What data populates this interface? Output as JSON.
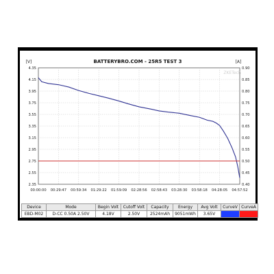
{
  "chart_data": {
    "type": "line",
    "title": "BATTERYBRO.COM - 25R5 TEST 3",
    "watermark": "ZKETech",
    "left_unit": "[V]",
    "right_unit": "[A]",
    "xlabel": "",
    "ylabel": "",
    "y_left_lim": [
      2.35,
      4.35
    ],
    "y_left_ticks": [
      "4.35",
      "4.15",
      "3.95",
      "3.75",
      "3.55",
      "3.35",
      "3.15",
      "2.95",
      "2.75",
      "2.55",
      "2.35"
    ],
    "y_right_lim": [
      0.4,
      0.9
    ],
    "y_right_ticks": [
      "0.90",
      "0.85",
      "0.80",
      "0.75",
      "0.70",
      "0.65",
      "0.60",
      "0.55",
      "0.50",
      "0.45",
      "0.40"
    ],
    "x_ticks": [
      "00:00:00",
      "00:29:47",
      "00:59:34",
      "01:29:22",
      "01:59:09",
      "02:28:56",
      "02:58:43",
      "03:28:30",
      "03:58:18",
      "04:28:05",
      "04:57:52"
    ],
    "x_lim_seconds": [
      0,
      17872
    ],
    "grid": true,
    "series": [
      {
        "axis": "left",
        "color": "#2e3192",
        "x_seconds": [
          0,
          300,
          900,
          1787,
          2700,
          3574,
          4500,
          5362,
          6200,
          7149,
          8000,
          8936,
          10000,
          10723,
          11500,
          12510,
          13500,
          14298,
          15000,
          15500,
          15800,
          16085,
          16400,
          16800,
          17200,
          17500,
          17700,
          17872
        ],
        "values": [
          4.18,
          4.11,
          4.08,
          4.06,
          4.02,
          3.96,
          3.91,
          3.87,
          3.83,
          3.78,
          3.73,
          3.68,
          3.64,
          3.61,
          3.59,
          3.57,
          3.53,
          3.5,
          3.45,
          3.43,
          3.4,
          3.36,
          3.27,
          3.14,
          2.97,
          2.82,
          2.65,
          2.46
        ]
      },
      {
        "axis": "right",
        "color": "#cc3333",
        "x_seconds": [
          0,
          17872
        ],
        "values": [
          0.5,
          0.5
        ]
      }
    ]
  },
  "table": {
    "headers": [
      "Device",
      "Mode",
      "Begin Volt",
      "Cutoff Volt",
      "Capacity",
      "Energy",
      "Avg Volt",
      "CurveV",
      "CurveA"
    ],
    "row": [
      "EBD-M02",
      "D-CC  0.50A  2.50V",
      "4.18V",
      "2.50V",
      "2524mAh",
      "9051mWh",
      "3.65V",
      "",
      ""
    ],
    "curve_colors": [
      "#1f3fff",
      "#ff1a1a"
    ]
  }
}
